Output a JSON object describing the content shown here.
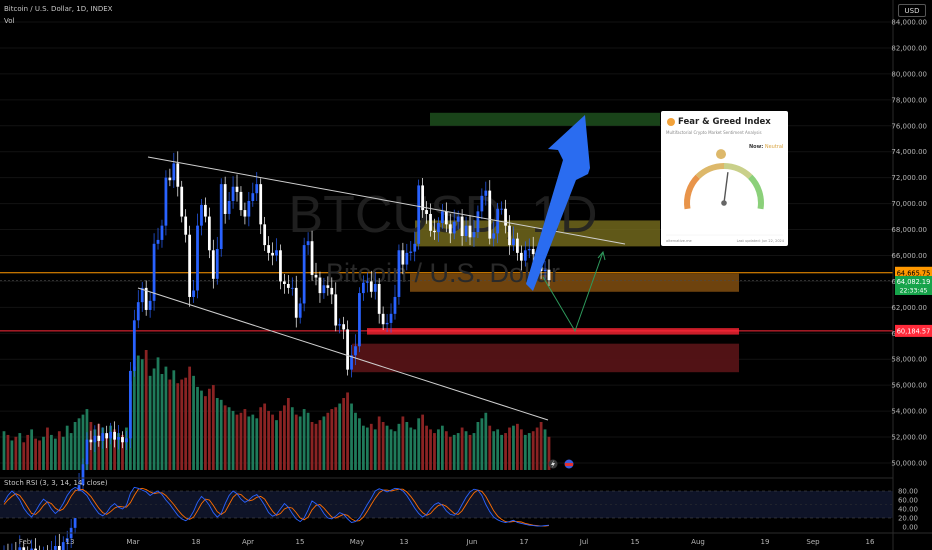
{
  "header": {
    "symbol_line": "Bitcoin / U.S. Dollar, 1D, INDEX",
    "volume_label": "Vol",
    "stoch_label": "Stoch RSI (3, 3, 14, 14, close)",
    "currency_button": "USD"
  },
  "watermark": {
    "symbol": "BTCUSD, 1D",
    "name": "Bitcoin / U.S. Dollar"
  },
  "price_labels": {
    "level_1": "64,665.75",
    "current": "64,082.19",
    "countdown": "22:33:45",
    "level_2": "60,184.57"
  },
  "colors": {
    "up": "#2962ff",
    "down": "#ffffff",
    "volume_up": "#1f7a5a",
    "volume_down": "#8a2323",
    "orange_line": "#ff9800",
    "red_line": "#ff2a3a",
    "stoch_k": "#2962ff",
    "stoch_d": "#ff6d00",
    "arrow": "#2a6cf0"
  },
  "fear_greed": {
    "title": "Fear & Greed Index",
    "subtitle": "Multifactorial Crypto Market Sentiment Analysis",
    "now_label": "Now:",
    "now_value": "Neutral",
    "value": 54,
    "footer_left": "alternative.me",
    "footer_right": "Last updated: Jun 22, 2024"
  },
  "chart_data": {
    "type": "candlestick",
    "price_axis": {
      "ticks": [
        "84,000.00",
        "82,000.00",
        "80,000.00",
        "78,000.00",
        "76,000.00",
        "74,000.00",
        "72,000.00",
        "70,000.00",
        "68,000.00",
        "66,000.00",
        "64,000.00",
        "62,000.00",
        "60,000.00",
        "58,000.00",
        "56,000.00",
        "54,000.00",
        "52,000.00",
        "50,000.00"
      ],
      "tick_values": [
        84000,
        82000,
        80000,
        78000,
        76000,
        74000,
        72000,
        70000,
        68000,
        66000,
        64000,
        62000,
        60000,
        58000,
        56000,
        54000,
        52000,
        50000
      ],
      "range": [
        49500,
        85000
      ]
    },
    "time_axis": [
      "Feb",
      "13",
      "Mar",
      "18",
      "Apr",
      "15",
      "May",
      "13",
      "Jun",
      "17",
      "Jul",
      "15",
      "Aug",
      "19",
      "Sep",
      "16"
    ],
    "stoch_axis": [
      "80.00",
      "60.00",
      "40.00",
      "20.00",
      "0.00"
    ],
    "stoch_ticks": [
      80,
      60,
      40,
      20,
      0
    ],
    "horizontal_levels": [
      64665.75,
      60184.57
    ],
    "zones": [
      {
        "name": "green",
        "from": 76000,
        "to": 77000,
        "color": "#1c4a1c"
      },
      {
        "name": "yellow",
        "from": 66700,
        "to": 68700,
        "color": "#807520"
      },
      {
        "name": "orange",
        "from": 63200,
        "to": 64600,
        "color": "#7a4a0f"
      },
      {
        "name": "red",
        "from": 59900,
        "to": 60400,
        "color": "#e0202e"
      },
      {
        "name": "dark-red",
        "from": 57000,
        "to": 59200,
        "color": "#5a1417"
      }
    ],
    "closes": [
      43200,
      42800,
      43100,
      42600,
      43500,
      43000,
      42900,
      43400,
      42700,
      42400,
      43100,
      42900,
      43300,
      43600,
      43100,
      43900,
      44200,
      45000,
      47200,
      48300,
      49900,
      51800,
      51600,
      52100,
      51700,
      52300,
      51900,
      52400,
      51800,
      52000,
      51600,
      51900,
      57100,
      61000,
      62400,
      63500,
      61800,
      62500,
      66900,
      67200,
      68300,
      72000,
      71800,
      73100,
      71300,
      69000,
      67600,
      62800,
      63300,
      68300,
      69900,
      69000,
      66400,
      64200,
      66500,
      71500,
      69200,
      70200,
      71300,
      70900,
      69500,
      69000,
      70200,
      70800,
      71500,
      68400,
      66800,
      66200,
      66000,
      66400,
      64000,
      63800,
      63500,
      63500,
      61200,
      62300,
      66800,
      67100,
      64500,
      64300,
      63100,
      63700,
      63500,
      63000,
      60600,
      60700,
      60300,
      57200,
      58300,
      59000,
      63100,
      63900,
      64000,
      63200,
      63800,
      61500,
      60700,
      60800,
      61500,
      62800,
      66400,
      65300,
      66200,
      66300,
      66900,
      71400,
      69500,
      69200,
      67900,
      67800,
      68500,
      69400,
      68400,
      67700,
      68600,
      69000,
      67500,
      68300,
      67400,
      67800,
      69400,
      70600,
      71000,
      67300,
      67700,
      69600,
      69600,
      68300,
      66800,
      67300,
      66200,
      65600,
      66400,
      66500,
      66100,
      66000,
      64800,
      64900,
      64100
    ],
    "volumes": [
      2.1,
      1.9,
      1.6,
      1.8,
      2.0,
      1.5,
      1.9,
      2.2,
      1.7,
      1.6,
      1.8,
      2.3,
      1.9,
      1.7,
      2.1,
      1.8,
      2.4,
      2.0,
      2.6,
      2.8,
      3.0,
      3.3,
      2.6,
      2.2,
      2.5,
      2.3,
      2.0,
      2.4,
      2.2,
      2.0,
      1.9,
      2.3,
      4.8,
      5.6,
      6.2,
      6.0,
      6.5,
      5.1,
      5.5,
      6.1,
      5.2,
      5.6,
      4.9,
      5.4,
      4.7,
      4.9,
      5.0,
      5.6,
      5.1,
      4.5,
      4.3,
      4.0,
      4.4,
      4.6,
      3.9,
      3.8,
      3.5,
      3.4,
      3.2,
      3.0,
      3.1,
      3.3,
      2.9,
      3.0,
      2.8,
      3.4,
      3.6,
      3.2,
      3.0,
      2.7,
      3.2,
      3.5,
      3.9,
      3.4,
      3.0,
      2.9,
      3.3,
      3.1,
      2.6,
      2.5,
      2.7,
      2.9,
      3.1,
      3.3,
      3.4,
      3.6,
      3.9,
      4.2,
      3.6,
      3.1,
      2.8,
      2.4,
      2.3,
      2.5,
      2.2,
      2.9,
      2.6,
      2.4,
      2.2,
      2.1,
      2.5,
      2.9,
      2.6,
      2.3,
      2.2,
      2.8,
      3.0,
      2.4,
      2.2,
      2.0,
      2.2,
      2.4,
      2.1,
      1.8,
      1.9,
      2.0,
      2.3,
      2.1,
      1.9,
      2.0,
      2.6,
      2.8,
      3.1,
      2.4,
      2.1,
      2.2,
      1.9,
      2.0,
      2.3,
      2.4,
      2.5,
      2.2,
      1.9,
      2.0,
      2.1,
      2.3,
      2.6,
      2.2,
      1.8
    ],
    "stoch_k": [
      55,
      70,
      80,
      72,
      60,
      42,
      30,
      22,
      35,
      50,
      62,
      55,
      40,
      30,
      38,
      52,
      70,
      82,
      88,
      84,
      78,
      70,
      55,
      42,
      30,
      25,
      32,
      45,
      52,
      44,
      40,
      48,
      75,
      88,
      86,
      82,
      78,
      70,
      76,
      80,
      72,
      60,
      50,
      38,
      26,
      18,
      14,
      20,
      35,
      55,
      68,
      60,
      48,
      32,
      22,
      30,
      52,
      70,
      80,
      74,
      62,
      55,
      60,
      68,
      72,
      62,
      48,
      32,
      24,
      28,
      40,
      52,
      44,
      30,
      18,
      12,
      20,
      38,
      58,
      52,
      44,
      30,
      20,
      18,
      24,
      32,
      28,
      18,
      10,
      12,
      20,
      35,
      50,
      64,
      80,
      85,
      82,
      78,
      82,
      86,
      85,
      80,
      70,
      56,
      42,
      30,
      22,
      28,
      40,
      50,
      54,
      48,
      36,
      28,
      26,
      34,
      50,
      66,
      78,
      84,
      82,
      70,
      50,
      34,
      22,
      16,
      12,
      10,
      12,
      15,
      10,
      8,
      6,
      4,
      3,
      2,
      2,
      3,
      4
    ],
    "stoch_d": [
      50,
      60,
      68,
      74,
      70,
      58,
      44,
      30,
      28,
      36,
      48,
      56,
      52,
      42,
      36,
      40,
      52,
      68,
      80,
      84,
      83,
      77,
      68,
      55,
      42,
      32,
      28,
      34,
      42,
      46,
      45,
      44,
      54,
      70,
      84,
      86,
      83,
      78,
      74,
      76,
      76,
      70,
      60,
      50,
      38,
      28,
      20,
      17,
      22,
      36,
      52,
      62,
      60,
      48,
      34,
      28,
      34,
      50,
      66,
      74,
      72,
      64,
      58,
      60,
      66,
      68,
      62,
      48,
      35,
      26,
      30,
      40,
      44,
      42,
      32,
      20,
      16,
      22,
      38,
      48,
      50,
      42,
      32,
      22,
      20,
      24,
      28,
      26,
      18,
      13,
      14,
      22,
      35,
      50,
      64,
      76,
      82,
      82,
      80,
      82,
      84,
      84,
      78,
      68,
      56,
      42,
      32,
      26,
      30,
      40,
      48,
      50,
      46,
      38,
      30,
      28,
      36,
      50,
      64,
      76,
      82,
      79,
      68,
      52,
      36,
      24,
      17,
      12,
      11,
      12,
      12,
      11,
      8,
      6,
      4,
      3,
      2,
      2,
      3
    ]
  }
}
